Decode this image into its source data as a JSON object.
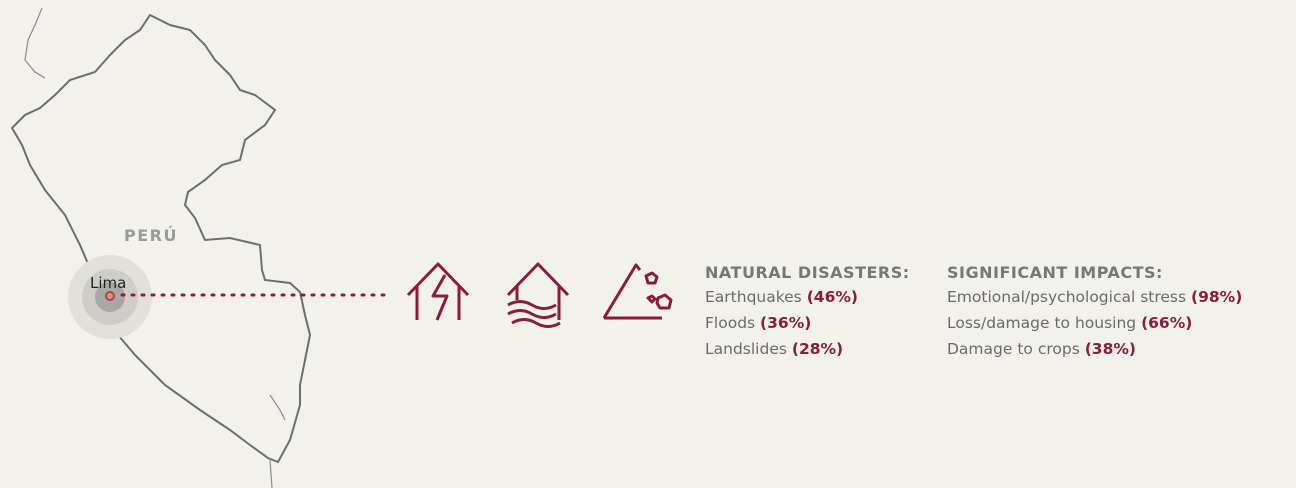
{
  "map": {
    "country": "PERÚ",
    "city": "Lima"
  },
  "natural_disasters": {
    "title": "NATURAL DISASTERS:",
    "items": [
      {
        "name": "Earthquakes",
        "share": "(46%)"
      },
      {
        "name": "Floods",
        "share": "(36%)"
      },
      {
        "name": "Landslides",
        "share": "(28%)"
      }
    ]
  },
  "significant_impacts": {
    "title": "SIGNIFICANT IMPACTS:",
    "items": [
      {
        "name": "Emotional/psychological stress",
        "share": "(98%)"
      },
      {
        "name": "Loss/damage to housing",
        "share": "(66%)"
      },
      {
        "name": "Damage to crops",
        "share": "(38%)"
      }
    ]
  }
}
